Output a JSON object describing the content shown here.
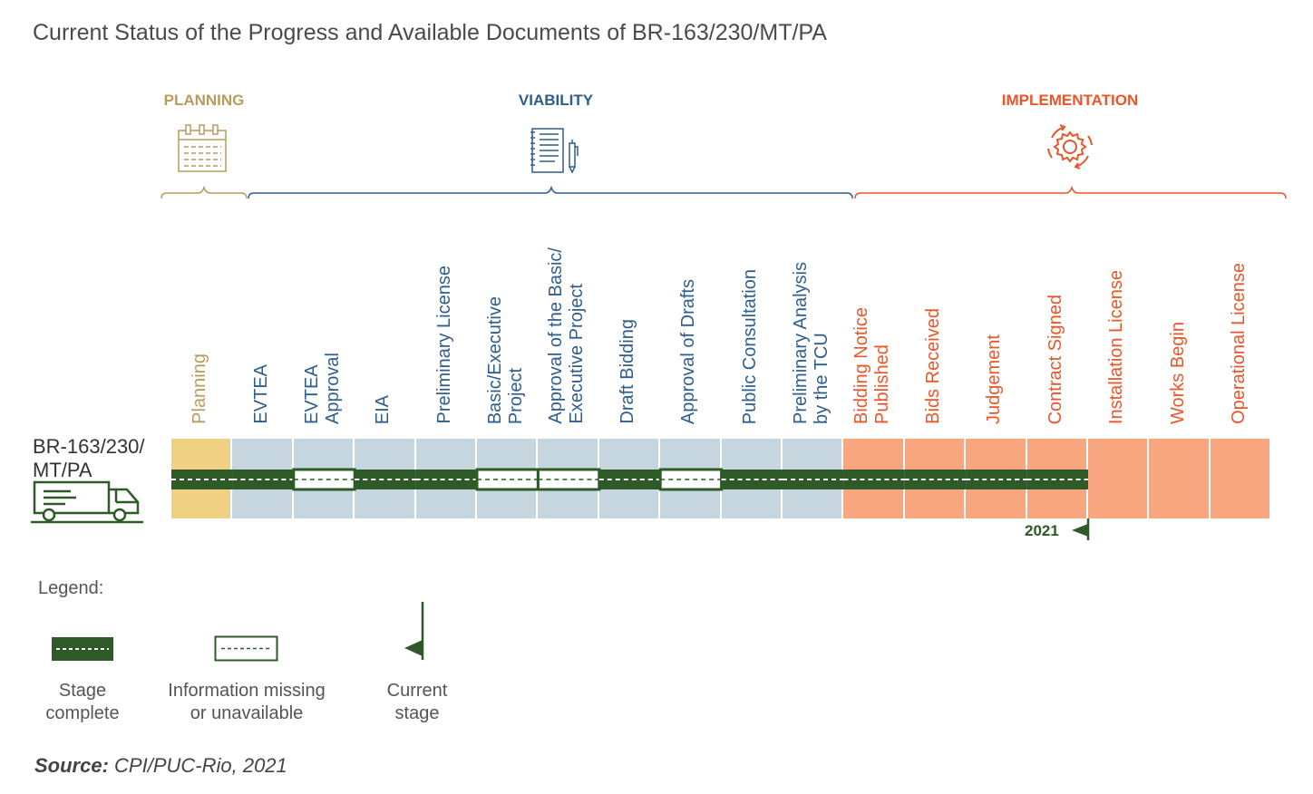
{
  "title": "Current Status of the Progress and Available Documents of BR-163/230/MT/PA",
  "colors": {
    "planning": "#b89c5c",
    "viability": "#2e5e8e",
    "implementation": "#e8562a",
    "planning_fill": "#f0d184",
    "viability_fill": "#c5d6de",
    "implementation_fill": "#f8a67f",
    "complete": "#2d5a27"
  },
  "phases": [
    {
      "name": "PLANNING",
      "icon": "calendar-icon"
    },
    {
      "name": "VIABILITY",
      "icon": "document-pen-icon"
    },
    {
      "name": "IMPLEMENTATION",
      "icon": "gear-cycle-icon"
    }
  ],
  "route": "BR-163/230/\nMT/PA",
  "route_icon": "truck-icon",
  "stages": [
    {
      "label": "Planning",
      "phase": "planning",
      "status": "complete"
    },
    {
      "label": "EVTEA",
      "phase": "viability",
      "status": "complete"
    },
    {
      "label": "EVTEA\nApproval",
      "phase": "viability",
      "status": "missing"
    },
    {
      "label": "EIA",
      "phase": "viability",
      "status": "complete"
    },
    {
      "label": "Preliminary License",
      "phase": "viability",
      "status": "complete"
    },
    {
      "label": "Basic/Executive\nProject",
      "phase": "viability",
      "status": "missing"
    },
    {
      "label": "Approval of the Basic/\nExecutive Project",
      "phase": "viability",
      "status": "missing"
    },
    {
      "label": "Draft Bidding",
      "phase": "viability",
      "status": "complete"
    },
    {
      "label": "Approval of Drafts",
      "phase": "viability",
      "status": "missing"
    },
    {
      "label": "Public Consultation",
      "phase": "viability",
      "status": "complete"
    },
    {
      "label": "Preliminary Analysis\nby the TCU",
      "phase": "viability",
      "status": "complete"
    },
    {
      "label": "Bidding Notice\nPublished",
      "phase": "implementation",
      "status": "complete"
    },
    {
      "label": "Bids Received",
      "phase": "implementation",
      "status": "complete"
    },
    {
      "label": "Judgement",
      "phase": "implementation",
      "status": "complete"
    },
    {
      "label": "Contract Signed",
      "phase": "implementation",
      "status": "complete"
    },
    {
      "label": "Installation License",
      "phase": "implementation",
      "status": "pending"
    },
    {
      "label": "Works Begin",
      "phase": "implementation",
      "status": "pending"
    },
    {
      "label": "Operational License",
      "phase": "implementation",
      "status": "pending"
    }
  ],
  "current_stage": {
    "after_stage": "Contract Signed",
    "year": "2021"
  },
  "legend": {
    "title": "Legend:",
    "items": [
      {
        "label": "Stage\ncomplete",
        "icon": "complete-road-icon"
      },
      {
        "label": "Information missing\nor unavailable",
        "icon": "missing-road-icon"
      },
      {
        "label": "Current\nstage",
        "icon": "current-stage-flag-icon"
      }
    ]
  },
  "source": {
    "prefix": "Source:",
    "text": " CPI/PUC-Rio, 2021"
  }
}
